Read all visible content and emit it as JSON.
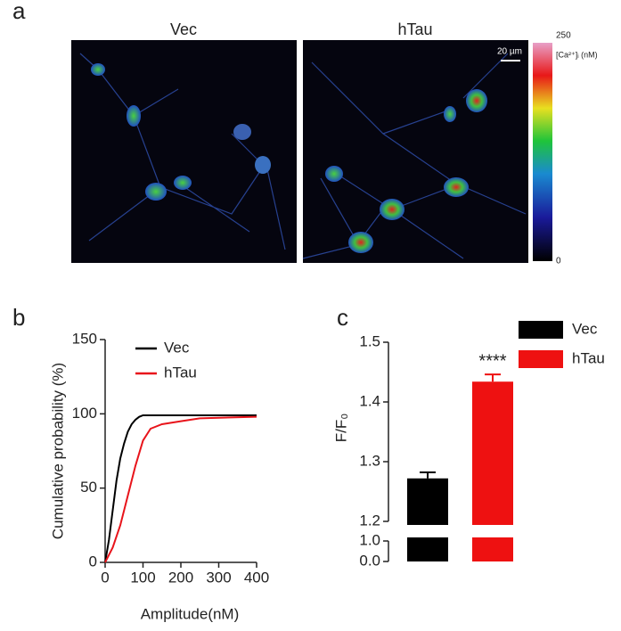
{
  "figure_a": {
    "panel": "a",
    "images": [
      "Vec",
      "hTau"
    ],
    "scale_bar": "20 µm",
    "colorbar": {
      "label": "[Ca²⁺]ᵢ (nM)",
      "lim": [
        0,
        250
      ],
      "ticks": [
        0,
        250
      ]
    }
  },
  "chart_data": [
    {
      "type": "line",
      "panel": "b",
      "xlabel": "Amplitude(nM)",
      "ylabel": "Cumulative probability (%)",
      "xlim": [
        0,
        400
      ],
      "xticks": [
        0,
        100,
        200,
        300,
        400
      ],
      "ylim": [
        0,
        150
      ],
      "yticks": [
        0,
        50,
        100,
        150
      ],
      "legend": "top-left",
      "series": [
        {
          "name": "Vec",
          "color": "#000000",
          "x": [
            0,
            10,
            20,
            30,
            40,
            50,
            60,
            70,
            80,
            90,
            100,
            400
          ],
          "values": [
            0,
            15,
            35,
            55,
            70,
            80,
            88,
            93,
            96,
            98,
            99,
            99
          ]
        },
        {
          "name": "hTau",
          "color": "#e8141b",
          "x": [
            0,
            20,
            40,
            60,
            80,
            100,
            120,
            150,
            200,
            250,
            400
          ],
          "values": [
            0,
            10,
            25,
            45,
            65,
            82,
            90,
            93,
            95,
            97,
            98
          ]
        }
      ]
    },
    {
      "type": "bar",
      "panel": "c",
      "ylabel": "F/F₀",
      "categories": [
        "Vec",
        "hTau"
      ],
      "colors": [
        "#000000",
        "#ee1111"
      ],
      "values": [
        1.272,
        1.434
      ],
      "errors": [
        0.01,
        0.012
      ],
      "annotations": [
        null,
        "****"
      ],
      "ylim": [
        0,
        1.5
      ],
      "ybreak": [
        1.0,
        1.2
      ],
      "yticks": [
        {
          "value": 0,
          "label": "0.0"
        },
        {
          "value": 1,
          "label": "1.0"
        },
        1.2,
        1.3,
        1.4,
        1.5
      ],
      "legend": "top-right"
    }
  ]
}
